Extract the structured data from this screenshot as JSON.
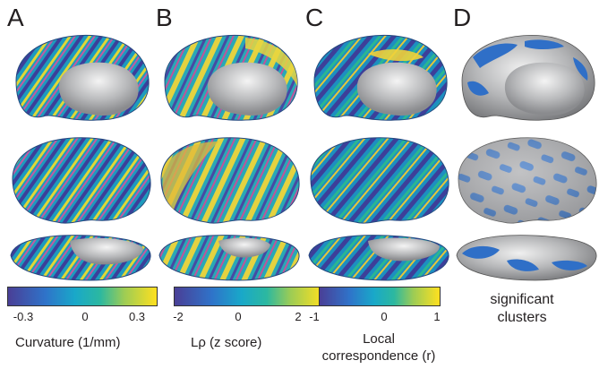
{
  "panels": [
    {
      "letter": "A"
    },
    {
      "letter": "B"
    },
    {
      "letter": "C"
    },
    {
      "letter": "D"
    }
  ],
  "colorbars": [
    {
      "ticks": [
        "-0.3",
        "0",
        "0.3"
      ],
      "label": "Curvature (1/mm)"
    },
    {
      "ticks": [
        "-2",
        "0",
        "2"
      ],
      "label": "Lρ (z score)"
    },
    {
      "ticks": [
        "-1",
        "0",
        "1"
      ],
      "label_line1": "Local",
      "label_line2": "correspondence (r)"
    }
  ],
  "legend_d": {
    "line1": "significant",
    "line2": "clusters"
  },
  "colors": {
    "map_low": "#3f3f9e",
    "map_mid": "#1fa6c8",
    "map_high": "#ffe21a",
    "cluster_blue": "#2f6fc7",
    "cortex_gray": "#9ea0a3",
    "medial_wall": "#bfc0c2"
  }
}
